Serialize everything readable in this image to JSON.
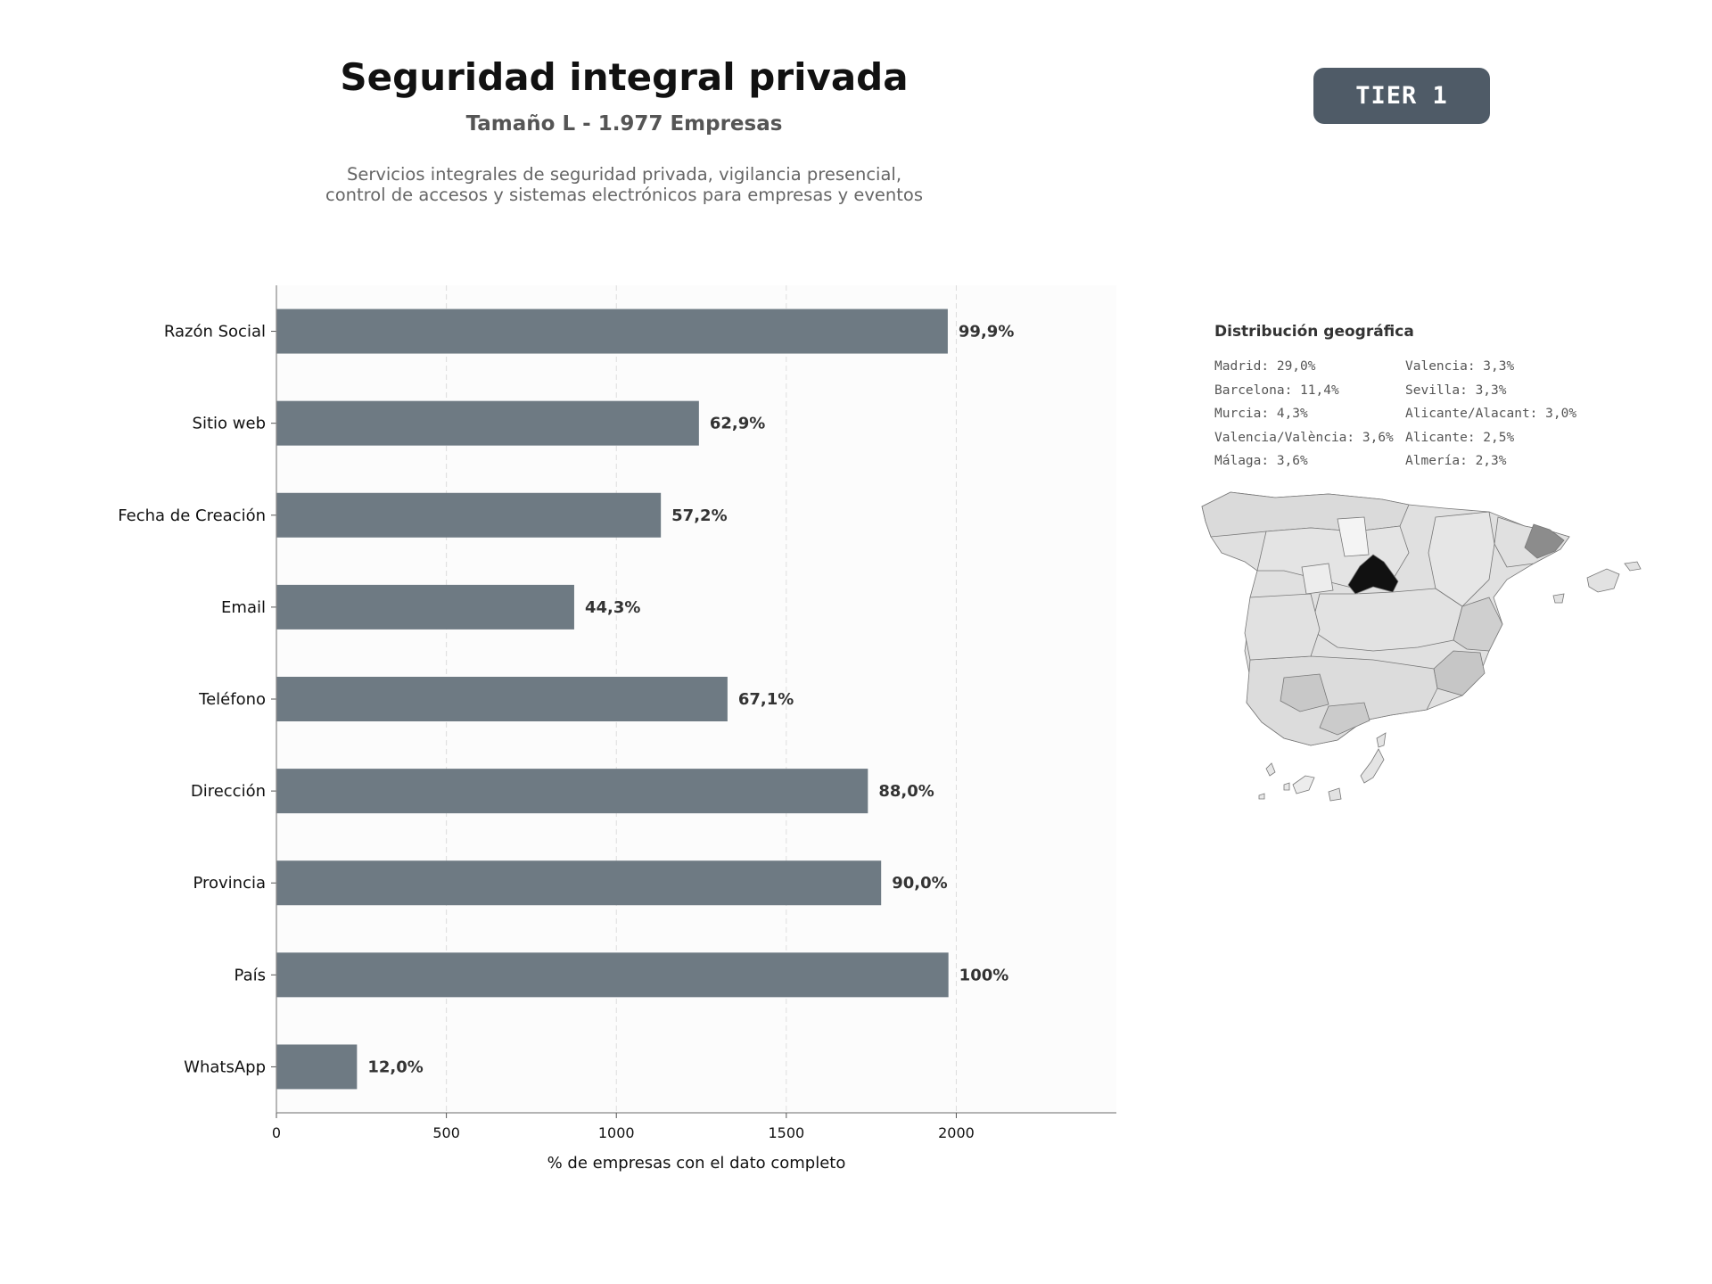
{
  "header": {
    "title": "Seguridad integral privada",
    "subtitle": "Tamaño L - 1.977 Empresas",
    "description_line1": "Servicios integrales de seguridad privada, vigilancia presencial,",
    "description_line2": "control de accesos y sistemas electrónicos para empresas y eventos",
    "badge": "TIER 1"
  },
  "chart_data": {
    "type": "bar",
    "orientation": "horizontal",
    "categories": [
      "Razón Social",
      "Sitio web",
      "Fecha de Creación",
      "Email",
      "Teléfono",
      "Dirección",
      "Provincia",
      "País",
      "WhatsApp"
    ],
    "values": [
      1975,
      1243,
      1131,
      876,
      1327,
      1740,
      1779,
      1977,
      237
    ],
    "data_labels": [
      "99,9%",
      "62,9%",
      "57,2%",
      "44,3%",
      "67,1%",
      "88,0%",
      "90,0%",
      "100%",
      "12,0%"
    ],
    "xlabel": "% de empresas con el dato completo",
    "ylabel": "",
    "xlim": [
      0,
      2471
    ],
    "xticks": [
      0,
      500,
      1000,
      1500,
      2000
    ],
    "grid": true,
    "bar_color": "#6e7a83"
  },
  "geo": {
    "title": "Distribución geográfica",
    "col1": [
      "Madrid: 29,0%",
      "Barcelona: 11,4%",
      "Murcia: 4,3%",
      "Valencia/València: 3,6%",
      "Málaga: 3,6%"
    ],
    "col2": [
      "Valencia: 3,3%",
      "Sevilla: 3,3%",
      "Alicante/Alacant: 3,0%",
      "Alicante: 2,5%",
      "Almería: 2,3%"
    ]
  }
}
